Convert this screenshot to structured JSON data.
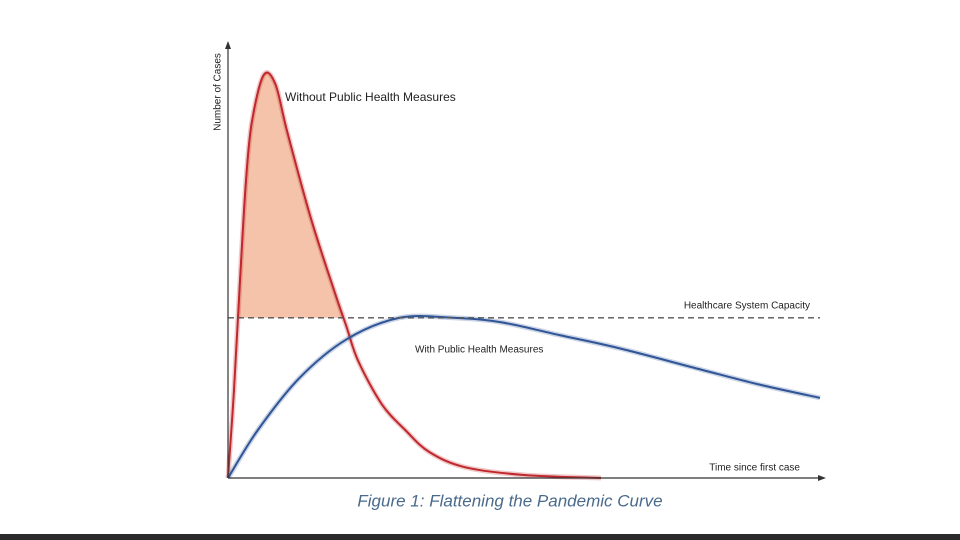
{
  "chart_data": {
    "type": "line",
    "title": "Figure 1: Flattening the Pandemic Curve",
    "x_label": "Time since first case",
    "y_label": "Number of Cases",
    "xlim": [
      0,
      100
    ],
    "ylim": [
      0,
      100
    ],
    "capacity": {
      "label": "Healthcare System Capacity",
      "value": 37
    },
    "series": [
      {
        "name": "Without Public Health Measures",
        "color": "#c0282d",
        "x": [
          0,
          1,
          2,
          3,
          4,
          6,
          8,
          10,
          14,
          18,
          20,
          22,
          26,
          30,
          34,
          40,
          50,
          63
        ],
        "values": [
          0,
          20,
          45,
          68,
          82,
          93,
          91,
          80,
          60,
          43,
          35,
          27,
          17,
          11,
          6,
          2.5,
          0.7,
          0
        ]
      },
      {
        "name": "With Public Health Measures",
        "color": "#2f5597",
        "x": [
          0,
          5,
          12,
          20,
          29,
          38,
          46,
          56,
          66,
          80,
          90,
          100
        ],
        "values": [
          0,
          11,
          23,
          32,
          37,
          37,
          36,
          33,
          30,
          25,
          21.5,
          18.5
        ]
      }
    ]
  }
}
